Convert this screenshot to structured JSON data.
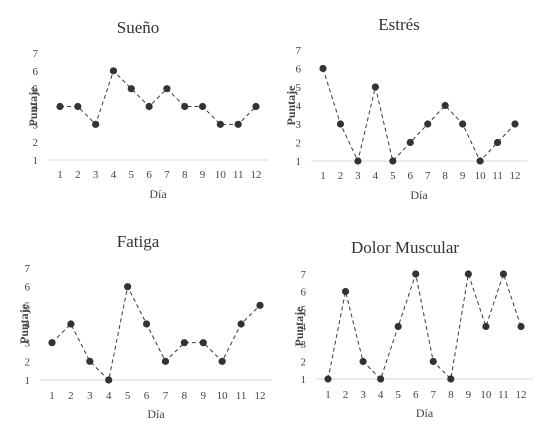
{
  "chart_data": [
    {
      "type": "line",
      "title": "Sueño",
      "xlabel": "Día",
      "ylabel": "Puntaje",
      "x": [
        1,
        2,
        3,
        4,
        5,
        6,
        7,
        8,
        9,
        10,
        11,
        12
      ],
      "y_ticks": [
        1,
        2,
        3,
        4,
        5,
        6,
        7
      ],
      "ylim": [
        1,
        7
      ],
      "values": [
        4,
        4,
        3,
        6,
        5,
        4,
        5,
        4,
        4,
        3,
        3,
        4
      ]
    },
    {
      "type": "line",
      "title": "Estrés",
      "xlabel": "Día",
      "ylabel": "Puntaje",
      "x": [
        1,
        2,
        3,
        4,
        5,
        6,
        7,
        8,
        9,
        10,
        11,
        12
      ],
      "y_ticks": [
        1,
        2,
        3,
        4,
        5,
        6,
        7
      ],
      "ylim": [
        1,
        7
      ],
      "values": [
        6,
        3,
        1,
        5,
        1,
        2,
        3,
        4,
        3,
        1,
        2,
        3
      ]
    },
    {
      "type": "line",
      "title": "Fatiga",
      "xlabel": "Día",
      "ylabel": "Puntaje",
      "x": [
        1,
        2,
        3,
        4,
        5,
        6,
        7,
        8,
        9,
        10,
        11,
        12
      ],
      "y_ticks": [
        1,
        2,
        3,
        4,
        5,
        6,
        7
      ],
      "ylim": [
        1,
        7
      ],
      "values": [
        3,
        4,
        2,
        1,
        6,
        4,
        2,
        3,
        3,
        2,
        4,
        5
      ]
    },
    {
      "type": "line",
      "title": "Dolor Muscular",
      "xlabel": "Día",
      "ylabel": "Puntaje",
      "x": [
        1,
        2,
        3,
        4,
        5,
        6,
        7,
        8,
        9,
        10,
        11,
        12
      ],
      "y_ticks": [
        1,
        2,
        3,
        4,
        5,
        6,
        7
      ],
      "ylim": [
        1,
        7
      ],
      "values": [
        1,
        6,
        2,
        1,
        4,
        7,
        2,
        1,
        7,
        4,
        7,
        4
      ]
    }
  ]
}
